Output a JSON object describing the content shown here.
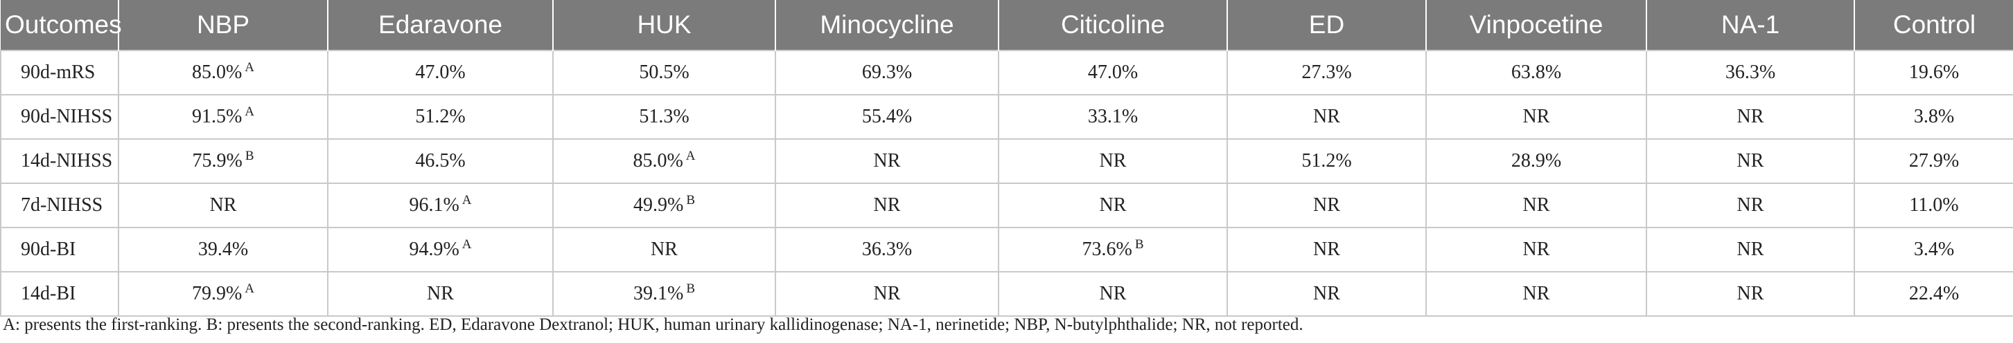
{
  "table": {
    "columns": [
      "Outcomes",
      "NBP",
      "Edaravone",
      "HUK",
      "Minocycline",
      "Citicoline",
      "ED",
      "Vinpocetine",
      "NA-1",
      "Control"
    ],
    "rows": [
      {
        "outcome": "90d-mRS",
        "cells": [
          {
            "value": "85.0%",
            "rank": "A"
          },
          {
            "value": "47.0%",
            "rank": ""
          },
          {
            "value": "50.5%",
            "rank": ""
          },
          {
            "value": "69.3%",
            "rank": ""
          },
          {
            "value": "47.0%",
            "rank": ""
          },
          {
            "value": "27.3%",
            "rank": ""
          },
          {
            "value": "63.8%",
            "rank": ""
          },
          {
            "value": "36.3%",
            "rank": ""
          },
          {
            "value": "19.6%",
            "rank": ""
          }
        ]
      },
      {
        "outcome": "90d-NIHSS",
        "cells": [
          {
            "value": "91.5%",
            "rank": "A"
          },
          {
            "value": "51.2%",
            "rank": ""
          },
          {
            "value": "51.3%",
            "rank": ""
          },
          {
            "value": "55.4%",
            "rank": ""
          },
          {
            "value": "33.1%",
            "rank": ""
          },
          {
            "value": "NR",
            "rank": ""
          },
          {
            "value": "NR",
            "rank": ""
          },
          {
            "value": "NR",
            "rank": ""
          },
          {
            "value": "3.8%",
            "rank": ""
          }
        ]
      },
      {
        "outcome": "14d-NIHSS",
        "cells": [
          {
            "value": "75.9%",
            "rank": "B"
          },
          {
            "value": "46.5%",
            "rank": ""
          },
          {
            "value": "85.0%",
            "rank": "A"
          },
          {
            "value": "NR",
            "rank": ""
          },
          {
            "value": "NR",
            "rank": ""
          },
          {
            "value": "51.2%",
            "rank": ""
          },
          {
            "value": "28.9%",
            "rank": ""
          },
          {
            "value": "NR",
            "rank": ""
          },
          {
            "value": "27.9%",
            "rank": ""
          }
        ]
      },
      {
        "outcome": "7d-NIHSS",
        "cells": [
          {
            "value": "NR",
            "rank": ""
          },
          {
            "value": "96.1%",
            "rank": "A"
          },
          {
            "value": "49.9%",
            "rank": "B"
          },
          {
            "value": "NR",
            "rank": ""
          },
          {
            "value": "NR",
            "rank": ""
          },
          {
            "value": "NR",
            "rank": ""
          },
          {
            "value": "NR",
            "rank": ""
          },
          {
            "value": "NR",
            "rank": ""
          },
          {
            "value": "11.0%",
            "rank": ""
          }
        ]
      },
      {
        "outcome": "90d-BI",
        "cells": [
          {
            "value": "39.4%",
            "rank": ""
          },
          {
            "value": "94.9%",
            "rank": "A"
          },
          {
            "value": "NR",
            "rank": ""
          },
          {
            "value": "36.3%",
            "rank": ""
          },
          {
            "value": "73.6%",
            "rank": "B"
          },
          {
            "value": "NR",
            "rank": ""
          },
          {
            "value": "NR",
            "rank": ""
          },
          {
            "value": "NR",
            "rank": ""
          },
          {
            "value": "3.4%",
            "rank": ""
          }
        ]
      },
      {
        "outcome": "14d-BI",
        "cells": [
          {
            "value": "79.9%",
            "rank": "A"
          },
          {
            "value": "NR",
            "rank": ""
          },
          {
            "value": "39.1%",
            "rank": "B"
          },
          {
            "value": "NR",
            "rank": ""
          },
          {
            "value": "NR",
            "rank": ""
          },
          {
            "value": "NR",
            "rank": ""
          },
          {
            "value": "NR",
            "rank": ""
          },
          {
            "value": "NR",
            "rank": ""
          },
          {
            "value": "22.4%",
            "rank": ""
          }
        ]
      }
    ]
  },
  "footnote": "A: presents the first-ranking. B: presents the second-ranking. ED, Edaravone Dextranol; HUK, human urinary kallidinogenase; NA-1, nerinetide; NBP, N-butylphthalide; NR, not reported."
}
